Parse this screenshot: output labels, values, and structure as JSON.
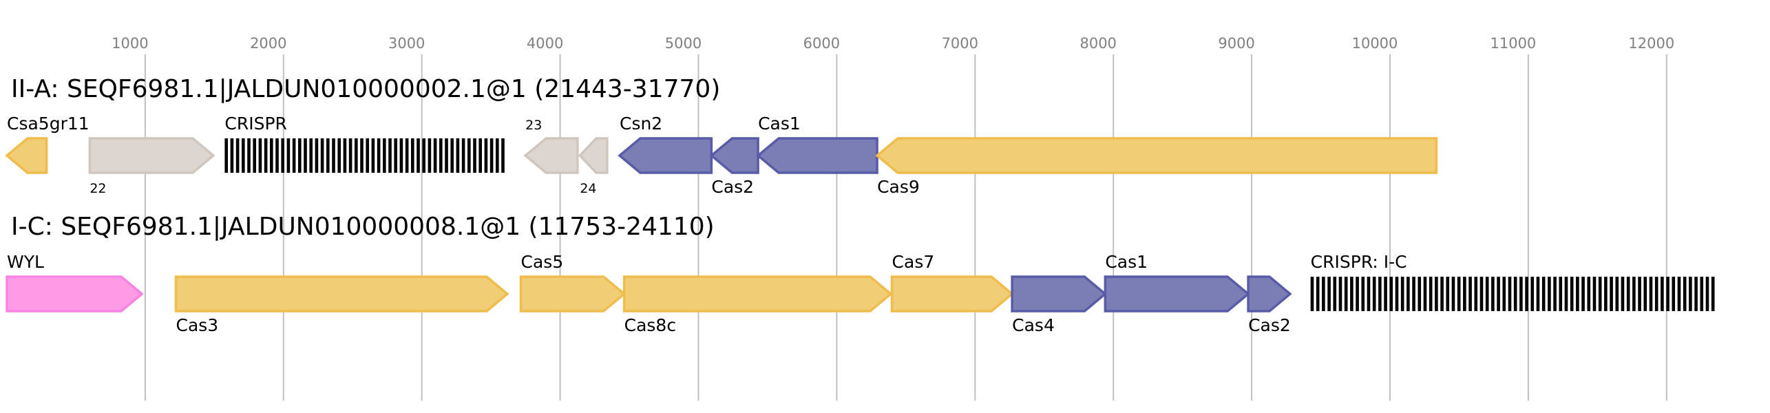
{
  "axis": {
    "ticks": [
      1000,
      2000,
      3000,
      4000,
      5000,
      6000,
      7000,
      8000,
      9000,
      10000,
      11000,
      12000
    ],
    "grid": true
  },
  "colors": {
    "yellow": {
      "fill": "#f1cd75",
      "stroke": "#efbd4d"
    },
    "gray": {
      "fill": "#dcd5d0",
      "stroke": "#d0c6bd"
    },
    "purple": {
      "fill": "#7b7db5",
      "stroke": "#585ca6"
    },
    "pink": {
      "fill": "#ff9be6",
      "stroke": "#f783e0"
    },
    "crispr": "#000000",
    "grid": "#c0c0c0"
  },
  "loci": [
    {
      "title": "II-A: SEQF6981.1|JALDUN010000002.1@1 (21443-31770)",
      "features": [
        {
          "label": "Csa5gr11",
          "start": 0,
          "end": 287,
          "strand": "-",
          "color": "yellow",
          "label_pos": "above"
        },
        {
          "label": "22",
          "start": 599,
          "end": 1493,
          "strand": "+",
          "color": "gray",
          "label_pos": "below",
          "small": true
        },
        {
          "label": "CRISPR",
          "start": 1575,
          "end": 3601,
          "type": "crispr",
          "label_pos": "above"
        },
        {
          "label": "23",
          "start": 3749,
          "end": 4126,
          "strand": "-",
          "color": "gray",
          "label_pos": "above",
          "small": true
        },
        {
          "label": "24",
          "start": 4143,
          "end": 4340,
          "strand": "-",
          "color": "gray",
          "label_pos": "below",
          "small": true
        },
        {
          "label": "Csn2",
          "start": 4430,
          "end": 5094,
          "strand": "-",
          "color": "purple",
          "label_pos": "above"
        },
        {
          "label": "Cas2",
          "start": 5094,
          "end": 5431,
          "strand": "-",
          "color": "purple",
          "label_pos": "below"
        },
        {
          "label": "Cas1",
          "start": 5431,
          "end": 6292,
          "strand": "-",
          "color": "purple",
          "label_pos": "above"
        },
        {
          "label": "Cas9",
          "start": 6292,
          "end": 10336,
          "strand": "-",
          "color": "yellow",
          "label_pos": "below"
        }
      ]
    },
    {
      "title": "I-C: SEQF6981.1|JALDUN010000008.1@1 (11753-24110)",
      "features": [
        {
          "label": "WYL",
          "start": 0,
          "end": 976,
          "strand": "+",
          "color": "pink",
          "label_pos": "above"
        },
        {
          "label": "Cas3",
          "start": 1222,
          "end": 3618,
          "strand": "+",
          "color": "yellow",
          "label_pos": "below"
        },
        {
          "label": "Cas5",
          "start": 3716,
          "end": 4463,
          "strand": "+",
          "color": "yellow",
          "label_pos": "above"
        },
        {
          "label": "Cas8c",
          "start": 4463,
          "end": 6391,
          "strand": "+",
          "color": "yellow",
          "label_pos": "below"
        },
        {
          "label": "Cas7",
          "start": 6399,
          "end": 7268,
          "strand": "+",
          "color": "yellow",
          "label_pos": "above"
        },
        {
          "label": "Cas4",
          "start": 7268,
          "end": 7941,
          "strand": "+",
          "color": "purple",
          "label_pos": "below"
        },
        {
          "label": "Cas1",
          "start": 7941,
          "end": 8975,
          "strand": "+",
          "color": "purple",
          "label_pos": "above"
        },
        {
          "label": "Cas2",
          "start": 8975,
          "end": 9278,
          "strand": "+",
          "color": "purple",
          "label_pos": "below"
        },
        {
          "label": "CRISPR: I-C",
          "start": 9426,
          "end": 12363,
          "type": "crispr",
          "label_pos": "above"
        }
      ]
    }
  ]
}
